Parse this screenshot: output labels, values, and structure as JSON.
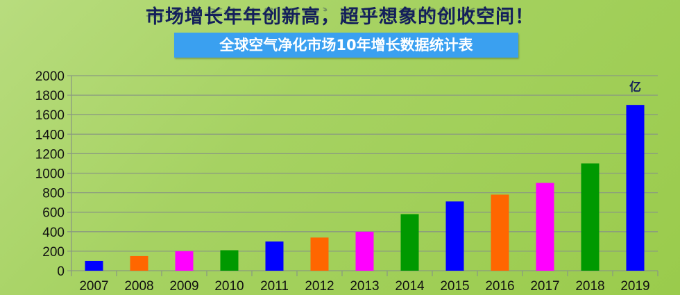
{
  "header": {
    "title": "市场增长年年创新高，超乎想象的创收空间！",
    "subtitle": "全球空气净化市场10年增长数据统计表"
  },
  "chart_data": {
    "type": "bar",
    "title": "全球空气净化市场10年增长数据统计表",
    "unit_label": "亿",
    "categories": [
      "2007",
      "2008",
      "2009",
      "2010",
      "2011",
      "2012",
      "2013",
      "2014",
      "2015",
      "2016",
      "2017",
      "2018",
      "2019"
    ],
    "values": [
      100,
      150,
      200,
      210,
      300,
      340,
      400,
      580,
      710,
      780,
      900,
      1100,
      1700
    ],
    "colors": [
      "#0000ff",
      "#ff6600",
      "#ff00ff",
      "#009900",
      "#0000ff",
      "#ff6600",
      "#ff00ff",
      "#009900",
      "#0000ff",
      "#ff6600",
      "#ff00ff",
      "#009900",
      "#0000ff"
    ],
    "ylim": [
      0,
      2000
    ],
    "yticks": [
      "0",
      "200",
      "400",
      "600",
      "800",
      "1000",
      "1200",
      "1400",
      "1600",
      "1800",
      "2000"
    ],
    "grid": true,
    "xlabel": "",
    "ylabel": ""
  }
}
